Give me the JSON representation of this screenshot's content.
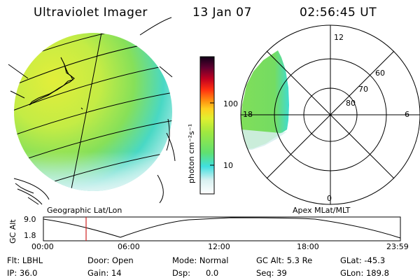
{
  "header": {
    "title": "Ultraviolet Imager",
    "date": "13 Jan 07",
    "time": "02:56:45 UT"
  },
  "left_panel": {
    "caption": "Geographic Lat/Lon"
  },
  "right_panel": {
    "caption": "Apex MLat/MLT",
    "mlt_labels": {
      "top": "12",
      "left": "18",
      "right": "6",
      "bottom": "0"
    },
    "lat_labels": [
      "60",
      "70",
      "80"
    ]
  },
  "colorbar": {
    "unit_label": "photon cm⁻²s⁻¹",
    "ticks": [
      "100",
      "10"
    ]
  },
  "altitude_plot": {
    "ylabel": "GC Alt",
    "y_ticks": [
      "9.0",
      "1.8"
    ],
    "x_ticks": [
      "00:00",
      "06:00",
      "12:00",
      "18:00",
      "23:59"
    ],
    "marker_time": "02:56:45"
  },
  "status": {
    "flt": "Flt: LBHL",
    "ip": "IP: 36.0",
    "door": "Door: Open",
    "gain": "Gain: 14",
    "mode": "Mode: Normal",
    "dsp": "Dsp:      0.0",
    "gc_alt": "GC Alt: 5.3 Re",
    "seq": "Seq: 39",
    "glat": "GLat: -45.3",
    "glon": "GLon: 189.8"
  },
  "colors": {
    "image_green": "#7fe05a",
    "image_yellow": "#d8f040",
    "image_cyan": "#3ee0d0",
    "marker_red": "#d02020"
  }
}
